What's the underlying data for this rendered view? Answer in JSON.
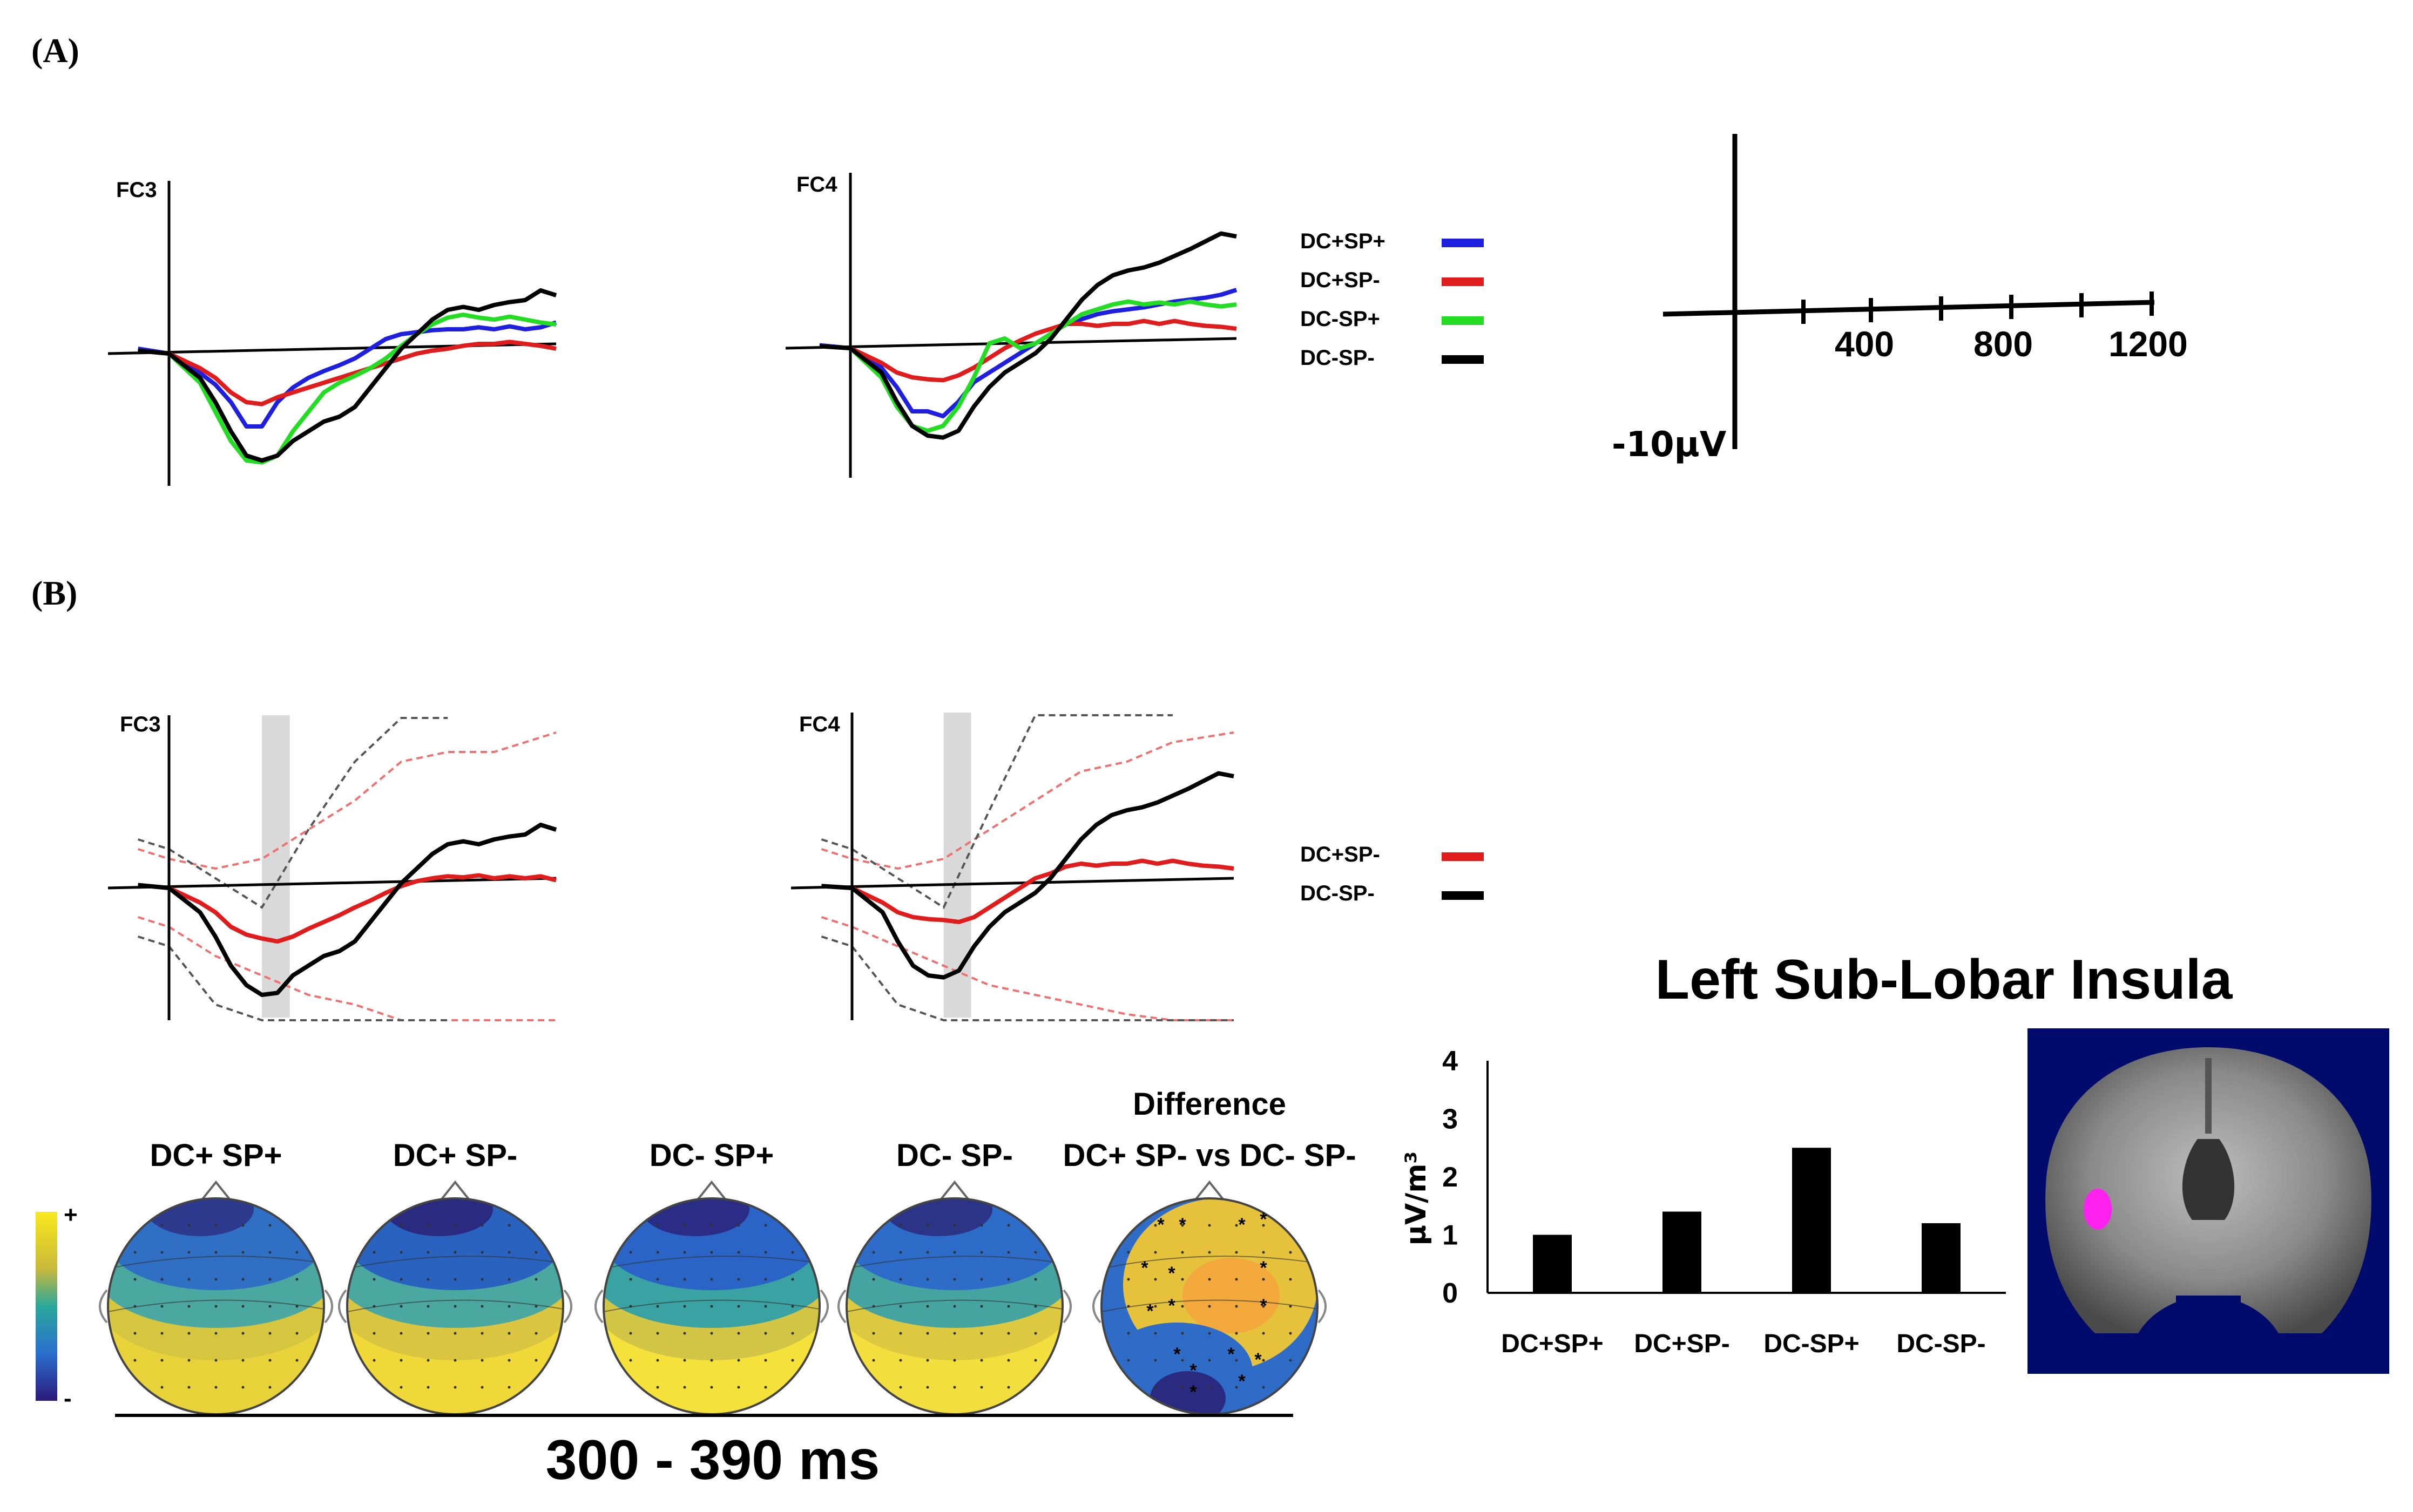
{
  "panels": {
    "a": "(A)",
    "b": "(B)"
  },
  "colors": {
    "DC+SP+": "#1f1fe0",
    "DC+SP-": "#e01c1c",
    "DC-SP+": "#22dd22",
    "DC-SP-": "#000000",
    "ci_red": "#f07070",
    "ci_black": "#555555",
    "highlight": "#d9d9d9",
    "brain_bg": "#000a6b",
    "activation": "#ff22ee"
  },
  "chart_data": [
    {
      "type": "line",
      "panel": "A",
      "channel": "FC3",
      "series": [
        {
          "name": "DC+SP+",
          "x": [
            -100,
            0,
            100,
            150,
            200,
            250,
            300,
            350,
            400,
            450,
            500,
            550,
            600,
            650,
            700,
            750,
            800,
            850,
            900,
            950,
            1000,
            1050,
            1100,
            1150,
            1200,
            1250
          ],
          "y": [
            0.5,
            0,
            -2,
            -3.2,
            -5,
            -7.5,
            -7.5,
            -5,
            -3.5,
            -2.5,
            -1.8,
            -1.2,
            -0.5,
            0.5,
            1.5,
            2.0,
            2.2,
            2.4,
            2.5,
            2.5,
            2.7,
            2.5,
            2.8,
            2.5,
            2.7,
            3.2
          ]
        },
        {
          "name": "DC+SP-",
          "x": [
            -100,
            0,
            100,
            150,
            200,
            250,
            300,
            350,
            400,
            450,
            500,
            550,
            600,
            650,
            700,
            750,
            800,
            850,
            900,
            950,
            1000,
            1050,
            1100,
            1150,
            1200,
            1250
          ],
          "y": [
            0.3,
            0,
            -1.5,
            -2.5,
            -4,
            -5,
            -5.2,
            -4.5,
            -4,
            -3.5,
            -3,
            -2.5,
            -2,
            -1.5,
            -1,
            -0.5,
            0,
            0.3,
            0.5,
            0.8,
            1.0,
            1.0,
            1.2,
            1.0,
            0.8,
            0.5
          ]
        },
        {
          "name": "DC-SP+",
          "x": [
            -100,
            0,
            100,
            150,
            200,
            250,
            300,
            350,
            400,
            450,
            500,
            550,
            600,
            650,
            700,
            750,
            800,
            850,
            900,
            950,
            1000,
            1050,
            1100,
            1150,
            1200,
            1250
          ],
          "y": [
            0.3,
            0,
            -3,
            -6,
            -9,
            -11,
            -11.2,
            -10.5,
            -8,
            -6,
            -4,
            -3,
            -2.3,
            -1.5,
            -0.5,
            0.8,
            2,
            3,
            3.7,
            4,
            3.7,
            3.5,
            3.8,
            3.5,
            3.2,
            3.0
          ]
        },
        {
          "name": "DC-SP-",
          "x": [
            -100,
            0,
            100,
            150,
            200,
            250,
            300,
            350,
            400,
            450,
            500,
            550,
            600,
            650,
            700,
            750,
            800,
            850,
            900,
            950,
            1000,
            1050,
            1100,
            1150,
            1200,
            1250
          ],
          "y": [
            0.3,
            0,
            -2.5,
            -5,
            -8,
            -10.5,
            -11,
            -10.5,
            -9,
            -8,
            -7,
            -6.5,
            -5.5,
            -3.5,
            -1.5,
            0.5,
            2,
            3.5,
            4.5,
            4.8,
            4.5,
            5.0,
            5.3,
            5.5,
            6.5,
            6.0
          ]
        }
      ],
      "xlim": [
        -100,
        1250
      ],
      "ylim": [
        -15,
        21
      ]
    },
    {
      "type": "line",
      "panel": "A",
      "channel": "FC4",
      "series": [
        {
          "name": "DC+SP+",
          "x": [
            -100,
            0,
            100,
            150,
            200,
            250,
            300,
            350,
            400,
            450,
            500,
            550,
            600,
            650,
            700,
            750,
            800,
            850,
            900,
            950,
            1000,
            1050,
            1100,
            1150,
            1200,
            1250
          ],
          "y": [
            0.3,
            0,
            -2,
            -4,
            -6.5,
            -6.5,
            -7,
            -5.5,
            -3.5,
            -2.5,
            -1.5,
            -0.5,
            0.5,
            1.5,
            2.5,
            3.0,
            3.5,
            3.8,
            4.0,
            4.2,
            4.5,
            4.8,
            5.0,
            5.2,
            5.5,
            6.0
          ]
        },
        {
          "name": "DC+SP-",
          "x": [
            -100,
            0,
            100,
            150,
            200,
            250,
            300,
            350,
            400,
            450,
            500,
            550,
            600,
            650,
            700,
            750,
            800,
            850,
            900,
            950,
            1000,
            1050,
            1100,
            1150,
            1200,
            1250
          ],
          "y": [
            0.2,
            0,
            -1.5,
            -2.5,
            -3,
            -3.2,
            -3.3,
            -2.8,
            -2,
            -1,
            0,
            0.8,
            1.5,
            2.0,
            2.5,
            2.5,
            2.3,
            2.5,
            2.5,
            2.8,
            2.5,
            2.8,
            2.5,
            2.3,
            2.2,
            2.0
          ]
        },
        {
          "name": "DC-SP+",
          "x": [
            -100,
            0,
            100,
            150,
            200,
            250,
            300,
            350,
            400,
            450,
            500,
            550,
            600,
            650,
            700,
            750,
            800,
            850,
            900,
            950,
            1000,
            1050,
            1100,
            1150,
            1200,
            1250
          ],
          "y": [
            0.2,
            0,
            -3,
            -6,
            -8,
            -8.5,
            -8,
            -6,
            -3,
            0.5,
            1,
            0,
            0.5,
            1.5,
            2.5,
            3.5,
            4.0,
            4.5,
            4.8,
            4.5,
            4.7,
            4.5,
            4.8,
            4.5,
            4.3,
            4.5
          ]
        },
        {
          "name": "DC-SP-",
          "x": [
            -100,
            0,
            100,
            150,
            200,
            250,
            300,
            350,
            400,
            450,
            500,
            550,
            600,
            650,
            700,
            750,
            800,
            850,
            900,
            950,
            1000,
            1050,
            1100,
            1150,
            1200,
            1250
          ],
          "y": [
            0.2,
            0,
            -2.5,
            -5.5,
            -8,
            -9,
            -9.2,
            -8.5,
            -6,
            -4,
            -2.5,
            -1.5,
            -0.5,
            1,
            3,
            5,
            6.5,
            7.5,
            8,
            8.3,
            8.8,
            9.5,
            10.2,
            11.0,
            11.8,
            11.5
          ]
        }
      ],
      "xlim": [
        -100,
        1250
      ],
      "ylim": [
        -15,
        21
      ]
    },
    {
      "type": "line",
      "panel": "B",
      "channel": "FC3",
      "highlight_window": [
        300,
        390
      ],
      "series": [
        {
          "name": "DC+SP-",
          "x": [
            -100,
            0,
            100,
            150,
            200,
            250,
            300,
            350,
            400,
            450,
            500,
            550,
            600,
            650,
            700,
            750,
            800,
            850,
            900,
            950,
            1000,
            1050,
            1100,
            1150,
            1200,
            1250
          ],
          "y": [
            0.3,
            0,
            -1.5,
            -2.5,
            -4,
            -4.8,
            -5.2,
            -5.5,
            -5,
            -4.2,
            -3.5,
            -2.8,
            -2,
            -1.3,
            -0.5,
            0.2,
            0.7,
            1.0,
            1.2,
            1.1,
            1.3,
            1.0,
            1.2,
            1.0,
            1.2,
            0.8
          ]
        },
        {
          "name": "DC-SP-",
          "x": [
            -100,
            0,
            100,
            150,
            200,
            250,
            300,
            350,
            400,
            450,
            500,
            550,
            600,
            650,
            700,
            750,
            800,
            850,
            900,
            950,
            1000,
            1050,
            1100,
            1150,
            1200,
            1250
          ],
          "y": [
            0.3,
            0,
            -2.5,
            -5,
            -8,
            -10,
            -11,
            -10.8,
            -9,
            -8,
            -7,
            -6.5,
            -5.5,
            -3.5,
            -1.5,
            0.5,
            2,
            3.5,
            4.5,
            4.8,
            4.5,
            5,
            5.3,
            5.5,
            6.5,
            6.0
          ]
        }
      ],
      "ci": [
        {
          "name": "DC+SP- upper",
          "x": [
            -100,
            0,
            150,
            300,
            450,
            600,
            750,
            900,
            1050,
            1250
          ],
          "y": [
            4,
            3,
            2,
            3,
            6,
            9,
            13,
            14,
            14,
            16
          ]
        },
        {
          "name": "DC+SP- lower",
          "x": [
            -100,
            0,
            150,
            300,
            450,
            600,
            750,
            900,
            1050,
            1250
          ],
          "y": [
            -3,
            -4,
            -7,
            -9,
            -11,
            -12,
            -14,
            -14,
            -15,
            -16
          ]
        },
        {
          "name": "DC-SP- upper",
          "x": [
            -100,
            0,
            150,
            300,
            450,
            600,
            750,
            900
          ],
          "y": [
            5,
            4,
            1,
            -2,
            6,
            13,
            21,
            26
          ]
        },
        {
          "name": "DC-SP- lower",
          "x": [
            -100,
            0,
            150,
            300,
            450,
            600,
            750,
            900
          ],
          "y": [
            -5,
            -6,
            -12,
            -20,
            -27,
            -32,
            -34,
            -36
          ]
        }
      ],
      "xlim": [
        -100,
        1250
      ],
      "ylim": [
        -15,
        21
      ]
    },
    {
      "type": "line",
      "panel": "B",
      "channel": "FC4",
      "highlight_window": [
        300,
        390
      ],
      "series": [
        {
          "name": "DC+SP-",
          "x": [
            -100,
            0,
            100,
            150,
            200,
            250,
            300,
            350,
            400,
            450,
            500,
            550,
            600,
            650,
            700,
            750,
            800,
            850,
            900,
            950,
            1000,
            1050,
            1100,
            1150,
            1200,
            1250
          ],
          "y": [
            0.2,
            0,
            -1.5,
            -2.5,
            -3,
            -3.2,
            -3.3,
            -3.5,
            -3,
            -2,
            -1,
            0,
            1,
            1.5,
            2.2,
            2.5,
            2.3,
            2.5,
            2.5,
            2.8,
            2.5,
            2.8,
            2.5,
            2.3,
            2.2,
            2.0
          ]
        },
        {
          "name": "DC-SP-",
          "x": [
            -100,
            0,
            100,
            150,
            200,
            250,
            300,
            350,
            400,
            450,
            500,
            550,
            600,
            650,
            700,
            750,
            800,
            850,
            900,
            950,
            1000,
            1050,
            1100,
            1150,
            1200,
            1250
          ],
          "y": [
            0.2,
            0,
            -2.5,
            -5.5,
            -8,
            -9,
            -9.2,
            -8.5,
            -6,
            -4,
            -2.5,
            -1.5,
            -0.5,
            1,
            3,
            5,
            6.5,
            7.5,
            8,
            8.3,
            8.8,
            9.5,
            10.2,
            11.0,
            11.8,
            11.5
          ]
        }
      ],
      "ci": [
        {
          "name": "DC+SP- upper",
          "x": [
            -100,
            0,
            150,
            300,
            450,
            600,
            750,
            900,
            1050,
            1250
          ],
          "y": [
            4,
            3,
            2,
            3,
            6,
            9,
            12,
            13,
            15,
            16
          ]
        },
        {
          "name": "DC+SP- lower",
          "x": [
            -100,
            0,
            150,
            300,
            450,
            600,
            750,
            900,
            1050,
            1250
          ],
          "y": [
            -3,
            -4,
            -6,
            -8,
            -10,
            -11,
            -12,
            -13,
            -15,
            -16
          ]
        },
        {
          "name": "DC-SP- upper",
          "x": [
            -100,
            0,
            150,
            300,
            450,
            600,
            750,
            900,
            1050
          ],
          "y": [
            5,
            4,
            1,
            -2,
            8,
            18,
            26,
            32,
            36
          ]
        },
        {
          "name": "DC-SP- lower",
          "x": [
            -100,
            0,
            150,
            300,
            450,
            600,
            750,
            900,
            1050,
            1250
          ],
          "y": [
            -5,
            -6,
            -12,
            -20,
            -26,
            -30,
            -32,
            -33,
            -34,
            -36
          ]
        }
      ],
      "xlim": [
        -100,
        1250
      ],
      "ylim": [
        -15,
        21
      ]
    },
    {
      "type": "bar",
      "panel": "B",
      "title": "Left Sub-Lobar Insula",
      "categories": [
        "DC+SP+",
        "DC+SP-",
        "DC-SP+",
        "DC-SP-"
      ],
      "values": [
        1.0,
        1.4,
        2.5,
        1.2
      ],
      "ylabel": "μV/m³",
      "ylim": [
        0,
        4
      ],
      "yticks": [
        "0",
        "1",
        "2",
        "3",
        "4"
      ]
    }
  ],
  "legend_a": [
    "DC+SP+",
    "DC+SP-",
    "DC-SP+",
    "DC-SP-"
  ],
  "legend_b": [
    "DC+SP-",
    "DC-SP-"
  ],
  "scale_bar": {
    "ticks": [
      "400",
      "800",
      "1200"
    ],
    "amplitude": "-10μV"
  },
  "topomaps": {
    "labels": [
      "DC+ SP+",
      "DC+ SP-",
      "DC- SP+",
      "DC- SP-",
      "DC+ SP- vs DC- SP-"
    ],
    "difference_title": "Difference",
    "colorbar_plus": "+",
    "colorbar_minus": "-",
    "time_window": "300 - 390 ms"
  }
}
